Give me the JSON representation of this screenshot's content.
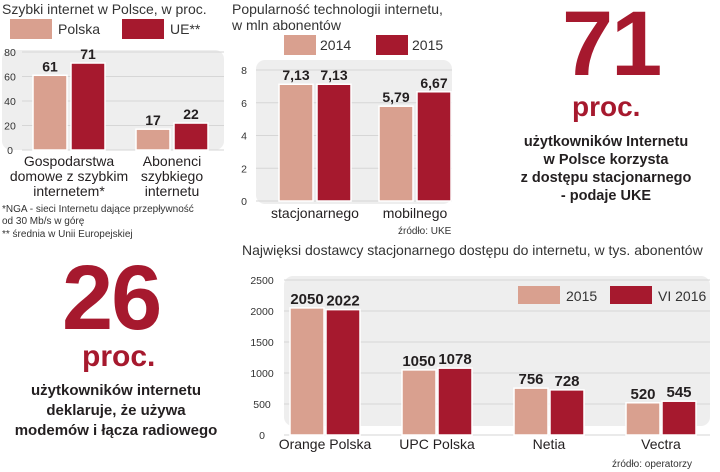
{
  "colors": {
    "c2014": "#d9a08f",
    "c2015": "#a6192e",
    "panel": "#eeeeee",
    "accent": "#a6192e"
  },
  "chart_data": [
    {
      "type": "bar",
      "title": "Szybki internet w Polsce, w proc.",
      "categories": [
        "Gospodarstwa domowe z szybkim internetem*",
        "Abonenci szybkiego internetu"
      ],
      "category_lines": [
        [
          "Gospodarstwa",
          "domowe z szybkim",
          "internetem*"
        ],
        [
          "Abonenci",
          "szybkiego",
          "internetu"
        ]
      ],
      "series": [
        {
          "name": "Polska",
          "values": [
            61,
            17
          ]
        },
        {
          "name": "UE**",
          "values": [
            71,
            22
          ]
        }
      ],
      "ylim": [
        0,
        80
      ],
      "yticks": [
        "0",
        "20",
        "40",
        "60",
        "80"
      ],
      "notes": [
        "*NGA - sieci Internetu dające przepływność",
        "od 30 Mb/s w górę",
        "** średnia w Unii Europejskiej"
      ]
    },
    {
      "type": "bar",
      "title": [
        "Popularność technologii internetu,",
        "w mln abonentów"
      ],
      "categories": [
        "stacjonarnego",
        "mobilnego"
      ],
      "series": [
        {
          "name": "2014",
          "values": [
            7.13,
            5.79
          ],
          "labels": [
            "7,13",
            "5,79"
          ]
        },
        {
          "name": "2015",
          "values": [
            7.13,
            6.67
          ],
          "labels": [
            "7,13",
            "6,67"
          ]
        }
      ],
      "ylim": [
        0,
        8
      ],
      "yticks": [
        "0",
        "2",
        "4",
        "6",
        "8"
      ],
      "source": "źródło: UKE"
    },
    {
      "type": "bar",
      "title": "Najwięksi dostawcy stacjonarnego dostępu do internetu, w tys. abonentów",
      "categories": [
        "Orange Polska",
        "UPC Polska",
        "Netia",
        "Vectra"
      ],
      "series": [
        {
          "name": "2015",
          "values": [
            2050,
            1050,
            756,
            520
          ]
        },
        {
          "name": "VI 2016",
          "values": [
            2022,
            1078,
            728,
            545
          ]
        }
      ],
      "ylim": [
        0,
        2500
      ],
      "yticks": [
        "0",
        "500",
        "1000",
        "1500",
        "2000",
        "2500"
      ],
      "source": "źródło: operatorzy"
    }
  ],
  "stat_right": {
    "number": "71",
    "unit": "proc.",
    "lines": [
      "użytkowników Internetu",
      "w Polsce korzysta",
      "z dostępu stacjonarnego",
      "- podaje UKE"
    ]
  },
  "stat_left": {
    "number": "26",
    "unit": "proc.",
    "lines": [
      "użytkowników internetu",
      "deklaruje, że używa",
      "modemów i łącza radiowego"
    ]
  }
}
